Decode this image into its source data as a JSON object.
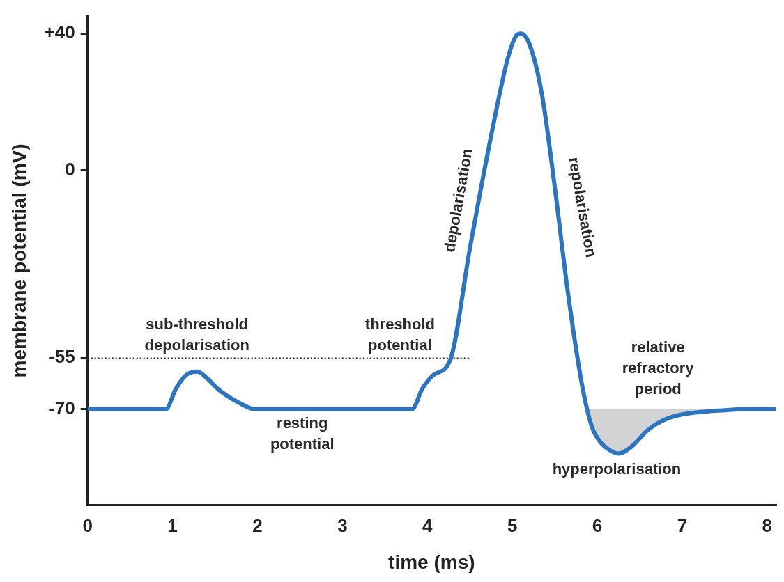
{
  "chart_data": {
    "type": "line",
    "xlabel": "time (ms)",
    "ylabel": "membrane potential (mV)",
    "xlim": [
      0,
      8.1
    ],
    "ylim": [
      -98,
      45
    ],
    "xticks": [
      0,
      1,
      2,
      3,
      4,
      5,
      6,
      7,
      8
    ],
    "yticks": [
      -70,
      -55,
      0,
      {
        "value": 40,
        "label": "+40"
      }
    ],
    "grid": false,
    "legend": false,
    "marker": "none",
    "line_style": "solid",
    "series": [
      {
        "color": "#2b74bf",
        "x": [
          0,
          0.92,
          1.04,
          1.16,
          1.29,
          1.41,
          1.53,
          1.74,
          1.98,
          3.82,
          3.94,
          4.07,
          4.27,
          4.5,
          4.75,
          4.95,
          5.05,
          5.1,
          5.2,
          5.35,
          5.5,
          5.65,
          5.8,
          5.88,
          5.95,
          6.05,
          6.15,
          6.25,
          6.4,
          6.6,
          6.8,
          7.0,
          7.5,
          7.8,
          8.1
        ],
        "values": [
          -70,
          -70,
          -64,
          -60,
          -59,
          -61,
          -64,
          -67.5,
          -70,
          -70,
          -64,
          -60,
          -55.5,
          -23,
          10,
          33,
          39.5,
          40,
          37,
          22,
          -5,
          -35,
          -60,
          -70,
          -76,
          -80,
          -82,
          -83,
          -81,
          -76,
          -73,
          -71.5,
          -70.3,
          -70,
          -70
        ],
        "lower": [
          null,
          null,
          null,
          null,
          null,
          null,
          null,
          null,
          null,
          null,
          null,
          null,
          null,
          null,
          null,
          null,
          null,
          null,
          null,
          null,
          null,
          null,
          null,
          -70,
          -76,
          -80,
          -82,
          -83,
          -81,
          -76,
          -73,
          -71.5,
          -70.3,
          null,
          null
        ],
        "upper": [
          null,
          null,
          null,
          null,
          null,
          null,
          null,
          null,
          null,
          null,
          null,
          null,
          null,
          null,
          null,
          null,
          null,
          null,
          null,
          null,
          null,
          null,
          null,
          -70,
          -70,
          -70,
          -70,
          -70,
          -70,
          -70,
          -70,
          -70,
          -70,
          null,
          null
        ]
      }
    ],
    "ref_lines": [
      {
        "axis": "y",
        "value": -55,
        "line_style": "dotted",
        "color": "#222222"
      }
    ],
    "annotations": [
      "sub-threshold\ndepolarisation",
      "threshold\npotential",
      "depolarisation",
      "repolarisation",
      "relative\nrefractory\nperiod",
      "resting\npotential",
      "hyperpolarisation"
    ]
  }
}
